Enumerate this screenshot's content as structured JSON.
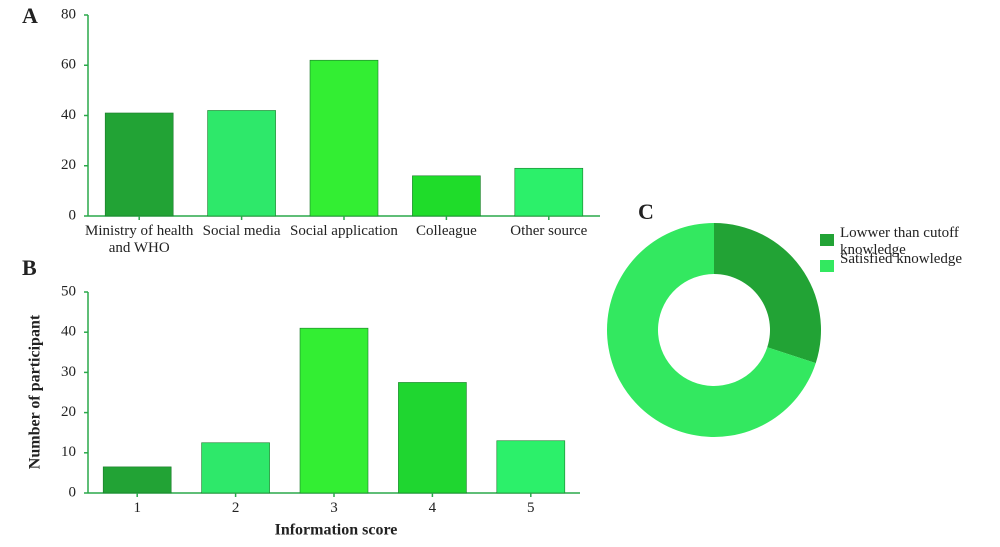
{
  "chart_data": [
    {
      "type": "bar",
      "panel_label": "A",
      "categories": [
        "Ministry of health and WHO",
        "Social media",
        "Social application",
        "Colleague",
        "Other source"
      ],
      "values": [
        41,
        42,
        62,
        16,
        19
      ],
      "colors": [
        "#22a335",
        "#2ee86a",
        "#33ee33",
        "#1fdc2a",
        "#2cf06a"
      ],
      "ylim": [
        0,
        80
      ],
      "yticks": [
        0,
        20,
        40,
        60,
        80
      ]
    },
    {
      "type": "bar",
      "panel_label": "B",
      "x_label": "Information score",
      "y_label": "Number of participant",
      "categories": [
        "1",
        "2",
        "3",
        "4",
        "5"
      ],
      "values": [
        6.5,
        12.5,
        41,
        27.5,
        13
      ],
      "colors": [
        "#22a335",
        "#2ee86a",
        "#33ee33",
        "#1fd630",
        "#2cf06a"
      ],
      "ylim": [
        0,
        50
      ],
      "yticks": [
        0,
        10,
        20,
        30,
        40,
        50
      ]
    },
    {
      "type": "pie",
      "panel_label": "C",
      "donut": true,
      "categories": [
        "Lowwer than cutoff knowledge",
        "Satisfied knowledge"
      ],
      "values": [
        30,
        70
      ],
      "colors": [
        "#22a335",
        "#33e860"
      ]
    }
  ]
}
